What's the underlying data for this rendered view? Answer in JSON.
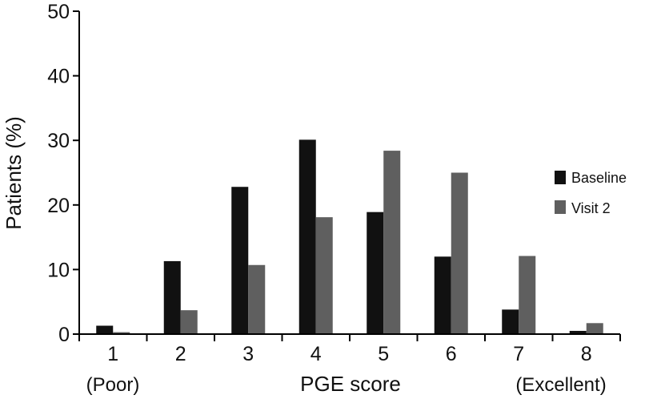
{
  "chart_data": {
    "type": "bar",
    "xlabel": "PGE score",
    "ylabel": "Patients (%)",
    "categories": [
      "1",
      "2",
      "3",
      "4",
      "5",
      "6",
      "7",
      "8"
    ],
    "category_sublabels": {
      "first": "(Poor)",
      "last": "(Excellent)"
    },
    "ylim": [
      0,
      50
    ],
    "yticks": [
      0,
      10,
      20,
      30,
      40,
      50
    ],
    "series": [
      {
        "name": "Baseline",
        "color": "#111111",
        "values": [
          1.3,
          11.3,
          22.8,
          30.1,
          18.9,
          12.0,
          3.8,
          0.5
        ]
      },
      {
        "name": "Visit 2",
        "color": "#5f5f5f",
        "values": [
          0.3,
          3.7,
          10.7,
          18.1,
          28.4,
          25.0,
          12.1,
          1.7
        ]
      }
    ],
    "legend_position": "right",
    "grid": false
  }
}
